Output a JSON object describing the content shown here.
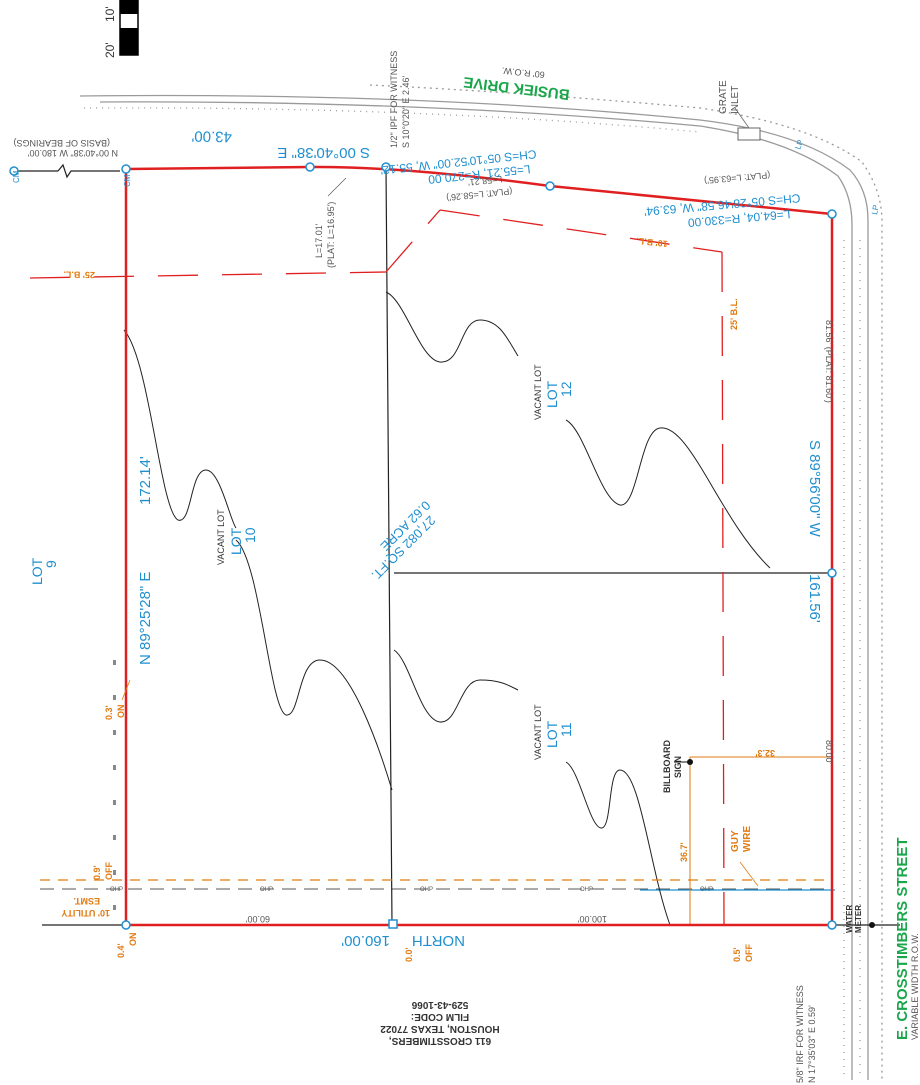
{
  "scale": {
    "label_20": "20'",
    "label_10": "10'"
  },
  "streets": {
    "busiek": {
      "name": "BUSIEK DRIVE",
      "row": "60' R.O.W."
    },
    "crosstimbers": {
      "name": "E. CROSSTIMBERS STREET",
      "row": "VARIABLE WIDTH R.O.W."
    }
  },
  "witness_top": {
    "line1": "1/2\" IPF FOR WITNESS",
    "line2": "S 10°0'20\" E 2.46'"
  },
  "witness_bottom": {
    "line1": "5/8\" IRF FOR WITNESS",
    "line2": "N 17°35'03\" E 0.59'"
  },
  "grate_inlet": {
    "line1": "GRATE",
    "line2": "INLET"
  },
  "basis_bearing": {
    "text": "N 00°40'38\" W 180.00'",
    "note": "(BASIS OF BEARINGS)"
  },
  "monuments": {
    "cm_left": "CM",
    "cm_right": "CM",
    "lp1": "LP",
    "lp2": "LP"
  },
  "bearings": {
    "north_line": "S 00°40'38\" E",
    "north_dist": "43.00'",
    "west_line": "N 89°25'28\" E",
    "west_dist": "172.14'",
    "east_line": "S 89°56'00\" W",
    "east_dist": "161.56'",
    "south_line": "NORTH",
    "south_dist": "160.00'"
  },
  "curves": {
    "c1_chord": "CH=S 05°10'52.00\" W, 55.12'",
    "c1_lr": "L=55.21, R=270.00",
    "c1_l": "L=58.21'",
    "c1_plat": "(PLAT: L=58.26')",
    "c2_chord": "CH=S 05°28'46.58\" W, 63.94'",
    "c2_lr": "L=64.04, R=330.00",
    "c2_plat": "(PLAT: L=63.95')",
    "c3_l": "L=17.01'",
    "c3_plat": "(PLAT: L=16.95')"
  },
  "lot_label": "LOT",
  "vacant": "VACANT LOT",
  "lots": {
    "lot9": "9",
    "lot10": "10",
    "lot11": "11",
    "lot12": "12"
  },
  "area": {
    "sqft": "27,082 SQ.FT.",
    "acre": "0.62 ACRE"
  },
  "setbacks": {
    "bl25_left": "25' B.L.",
    "bl10": "10' B.L.",
    "bl25_right": "25' B.L."
  },
  "utility": {
    "esmt1": "10' UTILITY",
    "esmt2": "ESMT."
  },
  "offsets": {
    "on03": "0.3'",
    "on04": "0.4'",
    "on_word": "ON",
    "off09": "0.9'",
    "off05": "0.5'",
    "off_word": "OFF",
    "zero": "0.0'"
  },
  "dims": {
    "d36": "36.7'",
    "d32": "32.3'",
    "d60": "60.00'",
    "d100": "100.00'",
    "d80": "80.00'",
    "d81": "81.56' (PLAT: 81.60')"
  },
  "labels": {
    "billboard": "BILLBOARD",
    "sign": "SIGN",
    "guy": "GUY",
    "wire": "WIRE",
    "water": "WATER",
    "meter": "METER",
    "ohp": "OHP"
  },
  "address": {
    "line1": "611 CROSSTIMBERS,",
    "line2": "HOUSTON, TEXAS 77022",
    "line3": "FILM CODE:",
    "line4": "529-43-1066"
  }
}
